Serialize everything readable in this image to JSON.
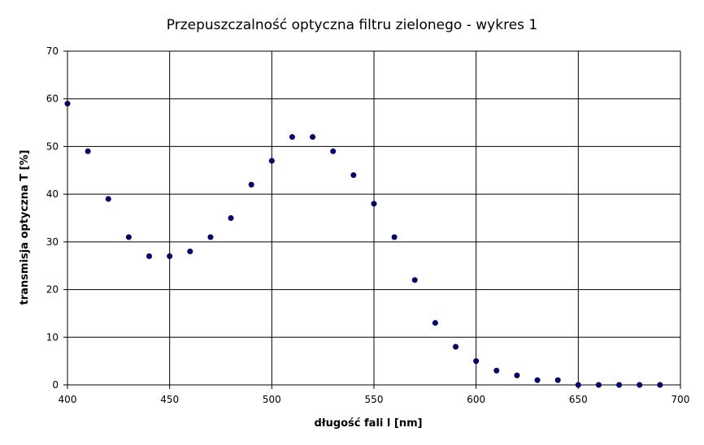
{
  "chart_data": {
    "type": "scatter",
    "title": "Przepuszczalność optyczna filtru zielonego - wykres 1",
    "xlabel": "długość fali l [nm]",
    "ylabel": "transmisja optyczna T  [%]",
    "xlim": [
      400,
      700
    ],
    "ylim": [
      0,
      70
    ],
    "xticks": [
      400,
      450,
      500,
      550,
      600,
      650,
      700
    ],
    "yticks": [
      0,
      10,
      20,
      30,
      40,
      50,
      60,
      70
    ],
    "grid": true,
    "legend": "none",
    "marker_color": "#000080",
    "series": [
      {
        "x": [
          400,
          410,
          420,
          430,
          440,
          450,
          460,
          470,
          480,
          490,
          500,
          510,
          520,
          530,
          540,
          550,
          560,
          570,
          580,
          590,
          600,
          610,
          620,
          630,
          640,
          650,
          660,
          670,
          680,
          690
        ],
        "y": [
          59,
          49,
          39,
          31,
          27,
          27,
          28,
          31,
          35,
          42,
          47,
          52,
          52,
          49,
          44,
          38,
          31,
          22,
          13,
          8,
          5,
          3,
          2,
          1,
          1,
          0,
          0,
          0,
          0,
          0
        ]
      }
    ]
  }
}
